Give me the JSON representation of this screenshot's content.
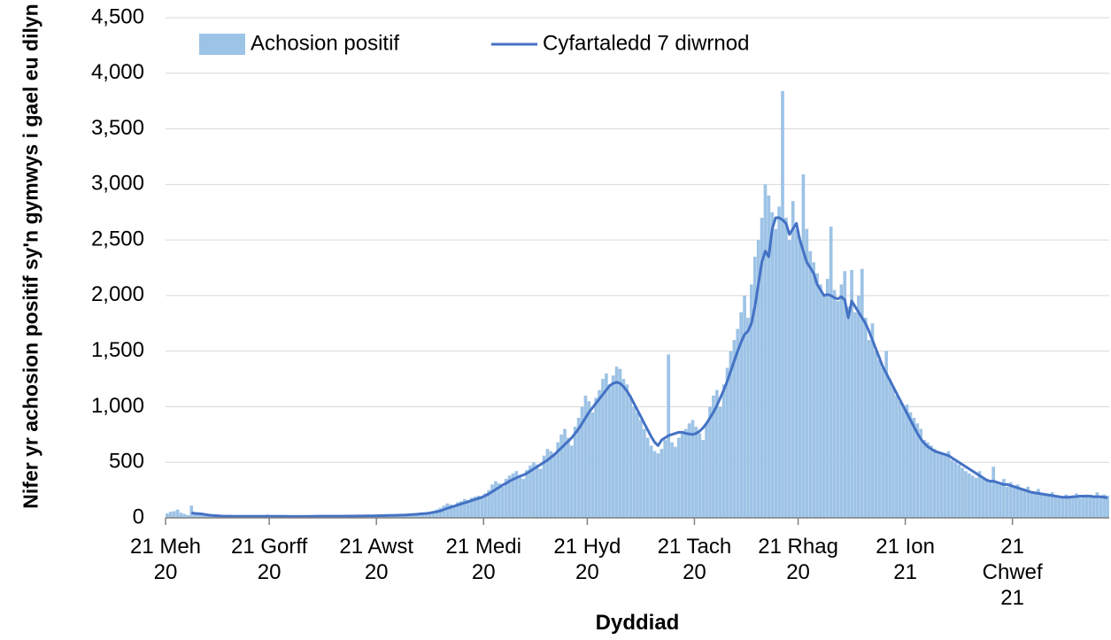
{
  "chart_data": {
    "type": "bar",
    "x_label": "Dyddiad",
    "y_label": "Nifer yr achosion positif sy'n gymwys i gael eu dilyn",
    "categories": [
      "21 Meh 20",
      null,
      null,
      null,
      null,
      null,
      null,
      null,
      null,
      null,
      null,
      null,
      null,
      null,
      null,
      null,
      null,
      null,
      null,
      null,
      null,
      null,
      null,
      null,
      null,
      null,
      null,
      null,
      null,
      null,
      "21 Gorff 20",
      null,
      null,
      null,
      null,
      null,
      null,
      null,
      null,
      null,
      null,
      null,
      null,
      null,
      null,
      null,
      null,
      null,
      null,
      null,
      null,
      null,
      null,
      null,
      null,
      null,
      null,
      null,
      null,
      null,
      null,
      "21 Awst 20",
      null,
      null,
      null,
      null,
      null,
      null,
      null,
      null,
      null,
      null,
      null,
      null,
      null,
      null,
      null,
      null,
      null,
      null,
      null,
      null,
      null,
      null,
      null,
      null,
      null,
      null,
      null,
      null,
      null,
      null,
      "21 Medi 20",
      null,
      null,
      null,
      null,
      null,
      null,
      null,
      null,
      null,
      null,
      null,
      null,
      null,
      null,
      null,
      null,
      null,
      null,
      null,
      null,
      null,
      null,
      null,
      null,
      null,
      null,
      null,
      null,
      null,
      "21 Hyd 20",
      null,
      null,
      null,
      null,
      null,
      null,
      null,
      null,
      null,
      null,
      null,
      null,
      null,
      null,
      null,
      null,
      null,
      null,
      null,
      null,
      null,
      null,
      null,
      null,
      null,
      null,
      null,
      null,
      null,
      null,
      "21 Tach 20",
      null,
      null,
      null,
      null,
      null,
      null,
      null,
      null,
      null,
      null,
      null,
      null,
      null,
      null,
      null,
      null,
      null,
      null,
      null,
      null,
      null,
      null,
      null,
      null,
      null,
      null,
      null,
      null,
      null,
      "21 Rhag 20",
      null,
      null,
      null,
      null,
      null,
      null,
      null,
      null,
      null,
      null,
      null,
      null,
      null,
      null,
      null,
      null,
      null,
      null,
      null,
      null,
      null,
      null,
      null,
      null,
      null,
      null,
      null,
      null,
      null,
      null,
      "21 Ion 21",
      null,
      null,
      null,
      null,
      null,
      null,
      null,
      null,
      null,
      null,
      null,
      null,
      null,
      null,
      null,
      null,
      null,
      null,
      null,
      null,
      null,
      null,
      null,
      null,
      null,
      null,
      null,
      null,
      null,
      null,
      "21 Chwef 21",
      null,
      null,
      null,
      null,
      null,
      null,
      null,
      null,
      null,
      null,
      null,
      null,
      null,
      null,
      null,
      null,
      null,
      null,
      null,
      null,
      null,
      null,
      null,
      null,
      null,
      null,
      null
    ],
    "series": [
      {
        "name": "Achosion positif",
        "type": "bar",
        "color": "#9dc3e6",
        "values": [
          40,
          55,
          60,
          75,
          45,
          35,
          25,
          110,
          50,
          35,
          30,
          25,
          20,
          18,
          22,
          15,
          12,
          20,
          18,
          15,
          12,
          15,
          20,
          14,
          10,
          12,
          16,
          15,
          12,
          30,
          14,
          12,
          15,
          18,
          10,
          12,
          15,
          14,
          12,
          10,
          12,
          15,
          18,
          20,
          14,
          10,
          12,
          15,
          18,
          16,
          14,
          12,
          15,
          18,
          20,
          16,
          14,
          18,
          22,
          20,
          18,
          20,
          22,
          25,
          20,
          18,
          22,
          28,
          30,
          25,
          30,
          35,
          32,
          40,
          45,
          38,
          50,
          60,
          75,
          90,
          110,
          130,
          120,
          100,
          140,
          150,
          170,
          160,
          180,
          190,
          200,
          180,
          220,
          250,
          300,
          330,
          310,
          280,
          350,
          380,
          400,
          420,
          380,
          350,
          430,
          470,
          500,
          480,
          440,
          560,
          620,
          600,
          580,
          680,
          750,
          800,
          720,
          650,
          820,
          900,
          1000,
          1100,
          1050,
          950,
          1080,
          1150,
          1250,
          1300,
          1200,
          1280,
          1360,
          1340,
          1250,
          1200,
          1100,
          1000,
          950,
          880,
          800,
          720,
          650,
          600,
          580,
          620,
          700,
          1470,
          680,
          640,
          720,
          760,
          800,
          850,
          880,
          820,
          760,
          700,
          850,
          1000,
          1100,
          1150,
          1000,
          1200,
          1350,
          1500,
          1600,
          1700,
          1850,
          2000,
          1800,
          2100,
          2350,
          2500,
          2700,
          3000,
          2900,
          2750,
          2600,
          2800,
          3840,
          2700,
          2500,
          2850,
          2600,
          2500,
          3090,
          2600,
          2400,
          2300,
          2200,
          2100,
          2000,
          2150,
          2620,
          2050,
          1950,
          2100,
          2220,
          1900,
          2230,
          1850,
          2000,
          2240,
          1800,
          1600,
          1750,
          1500,
          1420,
          1350,
          1500,
          1250,
          1180,
          1100,
          1050,
          1000,
          1020,
          950,
          900,
          850,
          800,
          700,
          680,
          650,
          620,
          600,
          580,
          560,
          600,
          520,
          500,
          480,
          450,
          420,
          400,
          380,
          360,
          420,
          350,
          330,
          340,
          460,
          310,
          300,
          350,
          280,
          320,
          290,
          300,
          260,
          250,
          280,
          240,
          230,
          260,
          220,
          200,
          210,
          230,
          190,
          200,
          180,
          210,
          200,
          190,
          220,
          180,
          200,
          210,
          190,
          200,
          230,
          190,
          210,
          200
        ]
      },
      {
        "name": "Cyfartaledd 7 diwrnod",
        "type": "line",
        "color": "#4472c4",
        "values": [
          null,
          null,
          null,
          null,
          null,
          null,
          null,
          45,
          40,
          38,
          35,
          30,
          25,
          22,
          20,
          18,
          16,
          15,
          15,
          14,
          14,
          14,
          14,
          14,
          14,
          14,
          14,
          14,
          14,
          14,
          14,
          14,
          14,
          14,
          14,
          13,
          13,
          13,
          13,
          13,
          13,
          13,
          14,
          15,
          15,
          15,
          15,
          15,
          15,
          15,
          15,
          15,
          16,
          16,
          16,
          17,
          17,
          17,
          18,
          18,
          18,
          19,
          20,
          21,
          22,
          22,
          23,
          24,
          25,
          26,
          28,
          30,
          32,
          35,
          38,
          40,
          44,
          50,
          55,
          62,
          75,
          85,
          95,
          105,
          115,
          125,
          135,
          145,
          155,
          165,
          175,
          185,
          200,
          215,
          235,
          255,
          275,
          295,
          310,
          330,
          345,
          360,
          375,
          385,
          400,
          420,
          440,
          460,
          480,
          500,
          520,
          545,
          570,
          600,
          630,
          660,
          690,
          720,
          760,
          800,
          850,
          900,
          950,
          990,
          1030,
          1070,
          1110,
          1150,
          1190,
          1210,
          1220,
          1210,
          1180,
          1140,
          1090,
          1030,
          970,
          910,
          850,
          790,
          730,
          680,
          650,
          700,
          720,
          740,
          750,
          760,
          770,
          770,
          760,
          755,
          750,
          760,
          780,
          810,
          850,
          900,
          950,
          1010,
          1080,
          1150,
          1230,
          1320,
          1410,
          1500,
          1580,
          1650,
          1680,
          1750,
          1900,
          2100,
          2300,
          2400,
          2350,
          2600,
          2700,
          2700,
          2680,
          2650,
          2550,
          2600,
          2650,
          2500,
          2400,
          2300,
          2250,
          2200,
          2100,
          2050,
          2000,
          2010,
          2000,
          1980,
          1970,
          1990,
          1960,
          1800,
          1950,
          1900,
          1850,
          1800,
          1750,
          1680,
          1600,
          1520,
          1440,
          1360,
          1300,
          1240,
          1180,
          1120,
          1060,
          1000,
          940,
          880,
          820,
          760,
          710,
          670,
          640,
          620,
          600,
          590,
          580,
          570,
          560,
          540,
          520,
          500,
          480,
          460,
          440,
          420,
          400,
          380,
          360,
          340,
          330,
          330,
          320,
          310,
          300,
          300,
          290,
          280,
          270,
          260,
          250,
          240,
          230,
          225,
          220,
          215,
          210,
          205,
          200,
          195,
          190,
          185,
          185,
          185,
          190,
          190,
          195,
          195,
          195,
          195,
          190,
          190,
          190,
          185,
          180
        ]
      }
    ],
    "ylim": [
      0,
      4500
    ],
    "yticks": [
      0,
      500,
      {
        "value": 1000,
        "label": "1,000"
      },
      {
        "value": 1500,
        "label": "1,500"
      },
      {
        "value": 2000,
        "label": "2,000"
      },
      {
        "value": 2500,
        "label": "2,500"
      },
      {
        "value": 3000,
        "label": "3,000"
      },
      {
        "value": 3500,
        "label": "3,500"
      },
      {
        "value": 4000,
        "label": "4,000"
      },
      {
        "value": 4500,
        "label": "4,500"
      }
    ],
    "grid": true,
    "legend": "top"
  }
}
